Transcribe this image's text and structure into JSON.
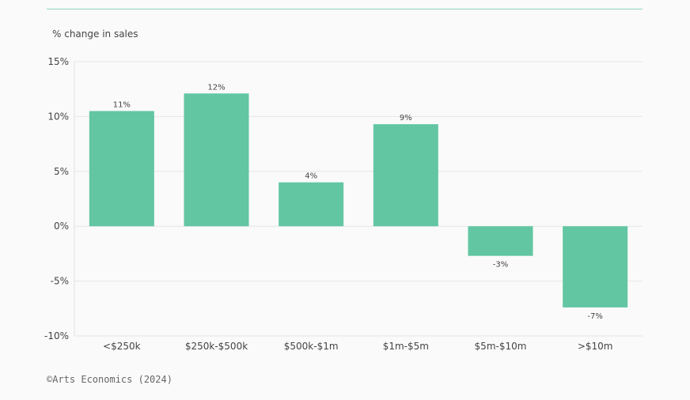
{
  "chart_data": {
    "type": "bar",
    "ylabel": "% change in sales",
    "categories": [
      "<$250k",
      "$250k-$500k",
      "$500k-$1m",
      "$1m-$5m",
      "$5m-$10m",
      ">$10m"
    ],
    "values": [
      10.5,
      12.1,
      4.0,
      9.3,
      -2.7,
      -7.4
    ],
    "value_labels": [
      "11%",
      "12%",
      "4%",
      "9%",
      "-3%",
      "-7%"
    ],
    "ylim": [
      -10,
      15
    ],
    "yticks": [
      15,
      10,
      5,
      0,
      -5,
      -10
    ],
    "ytick_labels": [
      "15%",
      "10%",
      "5%",
      "0%",
      "-5%",
      "-10%"
    ],
    "grid": true,
    "bar_color": "#62c6a2"
  },
  "source": "©Arts Economics (2024)"
}
